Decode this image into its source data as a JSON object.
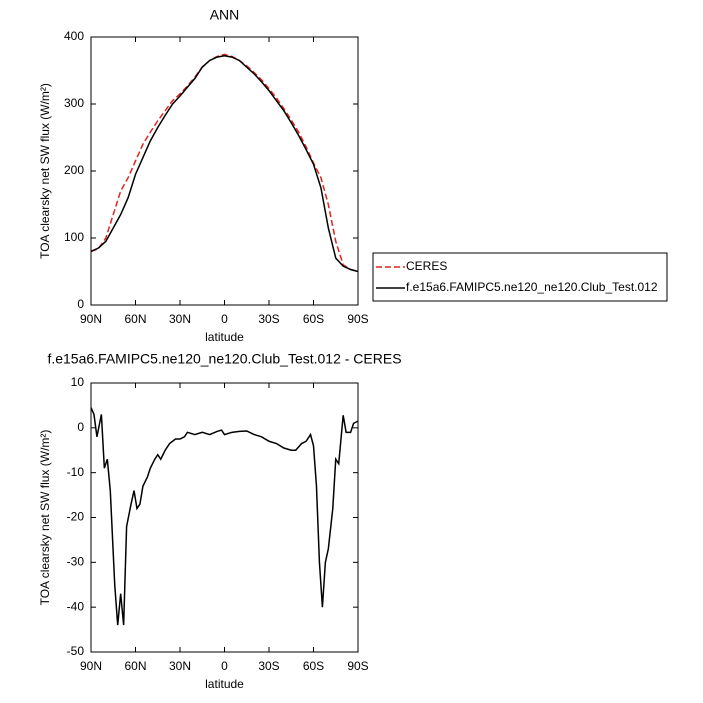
{
  "chart_data": [
    {
      "type": "line",
      "title": "ANN",
      "xlabel": "latitude",
      "ylabel": "TOA clearsky net SW flux (W/m²)",
      "x": [
        90,
        85,
        80,
        75,
        70,
        65,
        60,
        55,
        50,
        45,
        40,
        35,
        30,
        25,
        20,
        15,
        10,
        5,
        0,
        -5,
        -10,
        -15,
        -20,
        -25,
        -30,
        -35,
        -40,
        -45,
        -50,
        -55,
        -60,
        -65,
        -70,
        -75,
        -80,
        -85,
        -90
      ],
      "series": [
        {
          "name": "CERES",
          "color": "#e0241b",
          "line_style": "dashed",
          "values": [
            80,
            84,
            100,
            135,
            170,
            190,
            215,
            240,
            258,
            275,
            290,
            305,
            315,
            327,
            340,
            355,
            365,
            371,
            374,
            371,
            365,
            357,
            347,
            336,
            323,
            309,
            293,
            276,
            258,
            236,
            212,
            190,
            150,
            95,
            60,
            53,
            50
          ]
        },
        {
          "name": "f.e15a6.FAMIPC5.ne120_ne120.Club_Test.012",
          "color": "#000000",
          "line_style": "solid",
          "values": [
            80,
            85,
            95,
            115,
            135,
            160,
            195,
            220,
            245,
            265,
            283,
            300,
            312,
            325,
            338,
            355,
            365,
            370,
            372,
            370,
            365,
            355,
            345,
            333,
            320,
            305,
            290,
            272,
            253,
            232,
            210,
            175,
            115,
            70,
            58,
            53,
            50
          ]
        }
      ],
      "xlim": [
        90,
        -90
      ],
      "xticks": [
        {
          "value": 90,
          "label": "90N"
        },
        {
          "value": 60,
          "label": "60N"
        },
        {
          "value": 30,
          "label": "30N"
        },
        0,
        {
          "value": -30,
          "label": "30S"
        },
        {
          "value": -60,
          "label": "60S"
        },
        {
          "value": -90,
          "label": "90S"
        }
      ],
      "ylim": [
        0,
        400
      ],
      "yticks": [
        0,
        100,
        200,
        300,
        400
      ],
      "legend": "right"
    },
    {
      "type": "line",
      "title": "f.e15a6.FAMIPC5.ne120_ne120.Club_Test.012 - CERES",
      "xlabel": "latitude",
      "ylabel": "TOA clearsky net SW flux (W/m²)",
      "x": [
        90,
        88,
        86,
        83,
        81,
        79,
        77,
        74,
        72,
        70,
        68,
        66,
        63,
        61,
        59,
        57,
        55,
        52,
        50,
        47,
        45,
        43,
        40,
        37,
        33,
        30,
        27,
        25,
        20,
        15,
        10,
        5,
        2,
        0,
        -5,
        -10,
        -15,
        -20,
        -25,
        -30,
        -35,
        -40,
        -45,
        -48,
        -52,
        -55,
        -58,
        -60,
        -62,
        -64,
        -66,
        -68,
        -70,
        -73,
        -75,
        -77,
        -80,
        -82,
        -85,
        -87,
        -90
      ],
      "series": [
        {
          "color": "#000000",
          "line_style": "solid",
          "values": [
            4.5,
            3,
            -2,
            3,
            -9,
            -7,
            -14,
            -35,
            -44,
            -37,
            -44,
            -22,
            -17,
            -14,
            -18,
            -17,
            -13,
            -11,
            -9,
            -7,
            -6,
            -7,
            -5,
            -3.5,
            -2.5,
            -2.5,
            -2,
            -1,
            -1.5,
            -1,
            -1.5,
            -0.8,
            -0.5,
            -1.5,
            -1,
            -0.8,
            -0.7,
            -1.5,
            -2,
            -3,
            -3.5,
            -4.5,
            -5,
            -5,
            -3.5,
            -3,
            -1.5,
            -4,
            -13,
            -30,
            -40,
            -30,
            -27,
            -18,
            -7,
            -8,
            2.8,
            -1,
            -1,
            1,
            1.5
          ]
        }
      ],
      "xlim": [
        90,
        -90
      ],
      "xticks": [
        {
          "value": 90,
          "label": "90N"
        },
        {
          "value": 60,
          "label": "60N"
        },
        {
          "value": 30,
          "label": "30N"
        },
        0,
        {
          "value": -30,
          "label": "30S"
        },
        {
          "value": -60,
          "label": "60S"
        },
        {
          "value": -90,
          "label": "90S"
        }
      ],
      "ylim": [
        -50,
        10
      ],
      "yticks": [
        -50,
        -40,
        -30,
        -20,
        -10,
        0,
        10
      ]
    }
  ]
}
